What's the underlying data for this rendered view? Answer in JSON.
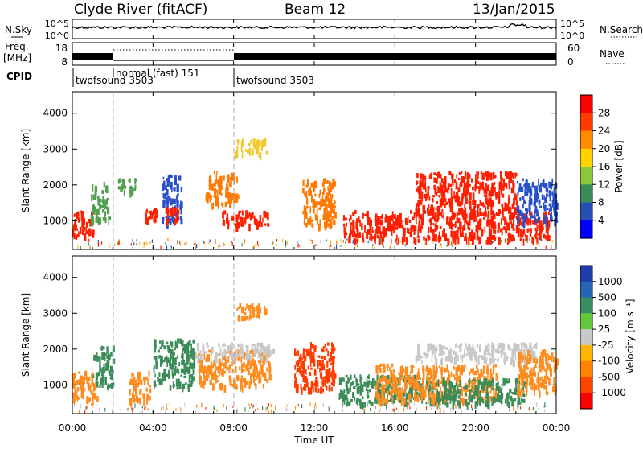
{
  "header": {
    "station": "Clyde River (fitACF)",
    "beam": "Beam 12",
    "date": "13/Jan/2015"
  },
  "strip_nsky": {
    "left_label": "N.Sky",
    "left_ticks": [
      "10^5",
      "10^0"
    ],
    "right_label": "N.Search",
    "right_ticks": [
      "10^5",
      "10^0"
    ]
  },
  "strip_freq": {
    "left_label_1": "Freq.",
    "left_label_2": "[MHz]",
    "left_ticks": [
      "18",
      "8"
    ],
    "right_label": "Nave",
    "right_ticks": [
      "60",
      "0"
    ]
  },
  "cpid": {
    "label": "CPID",
    "segments": [
      {
        "name": "twofsound 3503",
        "start_hour": 0.0
      },
      {
        "name": "normal (fast) 151",
        "start_hour": 2.0
      },
      {
        "name": "twofsound 3503",
        "start_hour": 8.0
      }
    ]
  },
  "power_panel": {
    "ylabel": "Slant Range [km]",
    "yticks": [
      1000,
      2000,
      3000,
      4000
    ],
    "ylim": [
      200,
      4600
    ],
    "colorbar_label": "Power [dB]",
    "colorbar_ticks": [
      "28",
      "24",
      "20",
      "16",
      "12",
      "8",
      "4"
    ],
    "colorbar_colors": [
      "#ff0000",
      "#ff3b00",
      "#ff8c00",
      "#ffd200",
      "#8cc83c",
      "#3c8c5a",
      "#2850b4",
      "#0000ff"
    ],
    "colors": {
      "strong": "#ff1e00",
      "orange": "#ff7800",
      "yellow": "#f0c828",
      "green": "#50a050",
      "blue": "#2850c8"
    }
  },
  "velocity_panel": {
    "ylabel": "Slant Range [km]",
    "yticks": [
      1000,
      2000,
      3000,
      4000
    ],
    "ylim": [
      200,
      4600
    ],
    "colorbar_label": "Velocity [m s⁻¹]",
    "colorbar_ticks": [
      "1000",
      "500",
      "100",
      "25",
      "-25",
      "-100",
      "-500",
      "-1000"
    ],
    "colorbar_colors": [
      "#1e3caa",
      "#2864b4",
      "#3c8c64",
      "#64c83c",
      "#c8c8c8",
      "#ffb400",
      "#ff8200",
      "#ff4600",
      "#ff0000"
    ],
    "colors": {
      "green": "#3c8c5a",
      "orange": "#ff8c1e",
      "gray": "#c8c8c8",
      "red": "#ff3c00"
    }
  },
  "xaxis": {
    "label": "Time UT",
    "ticks": [
      "00:00",
      "04:00",
      "08:00",
      "12:00",
      "16:00",
      "20:00",
      "00:00"
    ]
  },
  "chart_data": {
    "type": "heatmap",
    "x_unit": "hours UT",
    "xlim": [
      0,
      24
    ],
    "y_unit": "km",
    "ylim": [
      200,
      4600
    ],
    "power_echo_regions": [
      {
        "x": [
          0.0,
          1.0
        ],
        "y": [
          600,
          1300
        ],
        "level": "strong"
      },
      {
        "x": [
          0.9,
          1.8
        ],
        "y": [
          1000,
          2100
        ],
        "level": "green"
      },
      {
        "x": [
          2.2,
          3.2
        ],
        "y": [
          1800,
          2200
        ],
        "level": "green"
      },
      {
        "x": [
          3.6,
          4.2
        ],
        "y": [
          1000,
          1400
        ],
        "level": "strong"
      },
      {
        "x": [
          4.4,
          5.4
        ],
        "y": [
          1000,
          2300
        ],
        "level": "blue"
      },
      {
        "x": [
          4.6,
          5.2
        ],
        "y": [
          1000,
          1400
        ],
        "level": "strong"
      },
      {
        "x": [
          6.6,
          8.2
        ],
        "y": [
          1500,
          2400
        ],
        "level": "orange"
      },
      {
        "x": [
          7.4,
          9.8
        ],
        "y": [
          900,
          1300
        ],
        "level": "strong"
      },
      {
        "x": [
          8.0,
          9.6
        ],
        "y": [
          2900,
          3300
        ],
        "level": "yellow"
      },
      {
        "x": [
          11.4,
          13.0
        ],
        "y": [
          900,
          2200
        ],
        "level": "orange"
      },
      {
        "x": [
          13.4,
          23.6
        ],
        "y": [
          500,
          1300
        ],
        "level": "strong"
      },
      {
        "x": [
          17.0,
          22.0
        ],
        "y": [
          1300,
          2400
        ],
        "level": "strong"
      },
      {
        "x": [
          22.0,
          24.0
        ],
        "y": [
          1000,
          2200
        ],
        "level": "blue"
      }
    ],
    "velocity_echo_regions": [
      {
        "x": [
          0.0,
          1.2
        ],
        "y": [
          600,
          1400
        ],
        "level": "orange"
      },
      {
        "x": [
          1.0,
          2.0
        ],
        "y": [
          1000,
          2100
        ],
        "level": "green"
      },
      {
        "x": [
          2.8,
          3.8
        ],
        "y": [
          600,
          1400
        ],
        "level": "orange"
      },
      {
        "x": [
          4.0,
          6.0
        ],
        "y": [
          1000,
          2300
        ],
        "level": "green"
      },
      {
        "x": [
          6.2,
          9.8
        ],
        "y": [
          1000,
          2000
        ],
        "level": "orange"
      },
      {
        "x": [
          6.0,
          10.0
        ],
        "y": [
          1800,
          2200
        ],
        "level": "gray"
      },
      {
        "x": [
          8.0,
          9.6
        ],
        "y": [
          2900,
          3300
        ],
        "level": "orange"
      },
      {
        "x": [
          11.0,
          13.0
        ],
        "y": [
          900,
          2200
        ],
        "level": "red"
      },
      {
        "x": [
          13.2,
          18.0
        ],
        "y": [
          500,
          1300
        ],
        "level": "green"
      },
      {
        "x": [
          15.0,
          21.0
        ],
        "y": [
          600,
          1600
        ],
        "level": "orange"
      },
      {
        "x": [
          18.0,
          22.4
        ],
        "y": [
          500,
          1200
        ],
        "level": "green"
      },
      {
        "x": [
          17.0,
          23.0
        ],
        "y": [
          1700,
          2200
        ],
        "level": "gray"
      },
      {
        "x": [
          22.0,
          24.0
        ],
        "y": [
          800,
          2000
        ],
        "level": "orange"
      }
    ],
    "data_gaps_hours": [
      [
        10.0,
        10.6
      ]
    ]
  }
}
